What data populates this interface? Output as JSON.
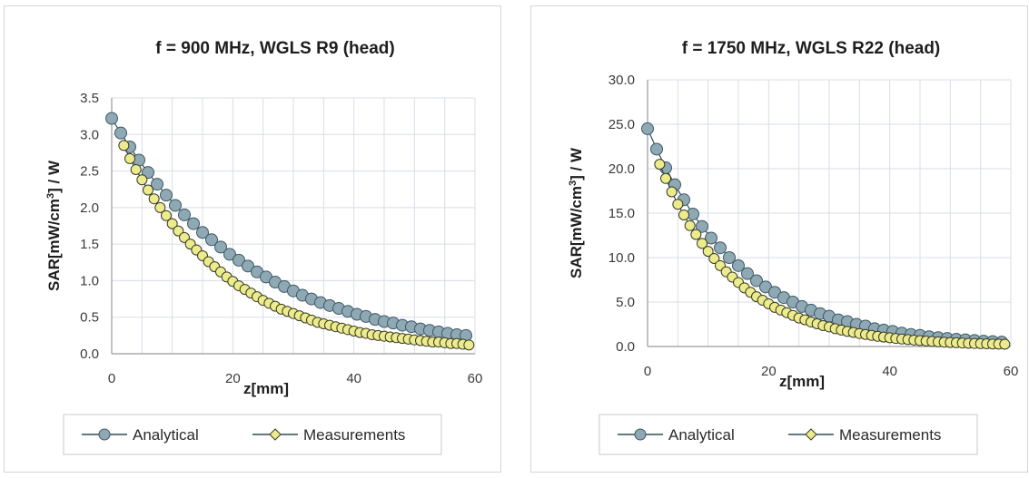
{
  "chart_data": [
    {
      "type": "scatter",
      "title": "f = 900 MHz, WGLS R9 (head)",
      "xlabel": "z[mm]",
      "ylabel": "SAR[mW/cm3] / W",
      "xlim": [
        0,
        60
      ],
      "ylim": [
        0,
        3.5
      ],
      "xticks": [
        "0",
        "20",
        "40",
        "60"
      ],
      "yticks": [
        "0.0",
        "0.5",
        "1.0",
        "1.5",
        "2.0",
        "2.5",
        "3.0",
        "3.5"
      ],
      "grid": true,
      "legend_position": "bottom",
      "series": [
        {
          "name": "Analytical",
          "color": "#8fa9b4",
          "x": [
            0,
            1.5,
            3,
            4.5,
            6,
            7.5,
            9,
            10.5,
            12,
            13.5,
            15,
            16.5,
            18,
            19.5,
            21,
            22.5,
            24,
            25.5,
            27,
            28.5,
            30,
            31.5,
            33,
            34.5,
            36,
            37.5,
            39,
            40.5,
            42,
            43.5,
            45,
            46.5,
            48,
            49.5,
            51,
            52.5,
            54,
            55.5,
            57,
            58.5
          ],
          "y": [
            3.22,
            3.02,
            2.83,
            2.65,
            2.48,
            2.32,
            2.17,
            2.03,
            1.9,
            1.78,
            1.66,
            1.56,
            1.46,
            1.36,
            1.28,
            1.2,
            1.12,
            1.05,
            0.98,
            0.92,
            0.86,
            0.8,
            0.75,
            0.7,
            0.66,
            0.62,
            0.58,
            0.54,
            0.51,
            0.47,
            0.44,
            0.42,
            0.39,
            0.37,
            0.34,
            0.32,
            0.3,
            0.28,
            0.26,
            0.25
          ]
        },
        {
          "name": "Measurements",
          "color": "#ecec8c",
          "x": [
            2,
            3,
            4,
            5,
            6,
            7,
            8,
            9,
            10,
            11,
            12,
            13,
            14,
            15,
            16,
            17,
            18,
            19,
            20,
            21,
            22,
            23,
            24,
            25,
            26,
            27,
            28,
            29,
            30,
            31,
            32,
            33,
            34,
            35,
            36,
            37,
            38,
            39,
            40,
            41,
            42,
            43,
            44,
            45,
            46,
            47,
            48,
            49,
            50,
            51,
            52,
            53,
            54,
            55,
            56,
            57,
            58,
            59
          ],
          "y": [
            2.85,
            2.67,
            2.52,
            2.38,
            2.24,
            2.12,
            2.0,
            1.89,
            1.78,
            1.68,
            1.59,
            1.5,
            1.42,
            1.34,
            1.26,
            1.19,
            1.12,
            1.05,
            0.99,
            0.93,
            0.88,
            0.83,
            0.78,
            0.73,
            0.69,
            0.65,
            0.61,
            0.58,
            0.55,
            0.52,
            0.49,
            0.46,
            0.43,
            0.41,
            0.39,
            0.37,
            0.35,
            0.33,
            0.31,
            0.29,
            0.28,
            0.26,
            0.25,
            0.24,
            0.23,
            0.22,
            0.21,
            0.2,
            0.19,
            0.18,
            0.17,
            0.16,
            0.16,
            0.15,
            0.14,
            0.14,
            0.13,
            0.12
          ]
        }
      ]
    },
    {
      "type": "scatter",
      "title": "f = 1750 MHz, WGLS R22 (head)",
      "xlabel": "z[mm]",
      "ylabel": "SAR[mW/cm3] / W",
      "xlim": [
        0,
        60
      ],
      "ylim": [
        0,
        30
      ],
      "xticks": [
        "0",
        "20",
        "40",
        "60"
      ],
      "yticks": [
        "0.0",
        "5.0",
        "10.0",
        "15.0",
        "20.0",
        "25.0",
        "30.0"
      ],
      "grid": true,
      "legend_position": "bottom",
      "series": [
        {
          "name": "Analytical",
          "color": "#8fa9b4",
          "x": [
            0,
            1.5,
            3,
            4.5,
            6,
            7.5,
            9,
            10.5,
            12,
            13.5,
            15,
            16.5,
            18,
            19.5,
            21,
            22.5,
            24,
            25.5,
            27,
            28.5,
            30,
            31.5,
            33,
            34.5,
            36,
            37.5,
            39,
            40.5,
            42,
            43.5,
            45,
            46.5,
            48,
            49.5,
            51,
            52.5,
            54,
            55.5,
            57,
            58.5
          ],
          "y": [
            24.5,
            22.2,
            20.1,
            18.2,
            16.5,
            14.9,
            13.5,
            12.2,
            11.1,
            10.0,
            9.1,
            8.2,
            7.4,
            6.7,
            6.1,
            5.5,
            5.0,
            4.5,
            4.1,
            3.7,
            3.4,
            3.0,
            2.8,
            2.5,
            2.3,
            2.0,
            1.85,
            1.7,
            1.5,
            1.35,
            1.25,
            1.1,
            1.0,
            0.9,
            0.82,
            0.75,
            0.68,
            0.6,
            0.55,
            0.5
          ]
        },
        {
          "name": "Measurements",
          "color": "#ecec8c",
          "x": [
            2,
            3,
            4,
            5,
            6,
            7,
            8,
            9,
            10,
            11,
            12,
            13,
            14,
            15,
            16,
            17,
            18,
            19,
            20,
            21,
            22,
            23,
            24,
            25,
            26,
            27,
            28,
            29,
            30,
            31,
            32,
            33,
            34,
            35,
            36,
            37,
            38,
            39,
            40,
            41,
            42,
            43,
            44,
            45,
            46,
            47,
            48,
            49,
            50,
            51,
            52,
            53,
            54,
            55,
            56,
            57,
            58,
            59
          ],
          "y": [
            20.5,
            18.9,
            17.4,
            16.0,
            14.8,
            13.6,
            12.6,
            11.6,
            10.7,
            9.9,
            9.1,
            8.4,
            7.8,
            7.2,
            6.6,
            6.1,
            5.6,
            5.2,
            4.8,
            4.4,
            4.1,
            3.8,
            3.5,
            3.2,
            3.0,
            2.75,
            2.55,
            2.35,
            2.2,
            2.0,
            1.85,
            1.7,
            1.58,
            1.46,
            1.35,
            1.25,
            1.15,
            1.06,
            0.98,
            0.9,
            0.84,
            0.78,
            0.72,
            0.66,
            0.61,
            0.57,
            0.52,
            0.48,
            0.45,
            0.42,
            0.39,
            0.36,
            0.34,
            0.32,
            0.3,
            0.28,
            0.27,
            0.26
          ]
        }
      ]
    }
  ]
}
